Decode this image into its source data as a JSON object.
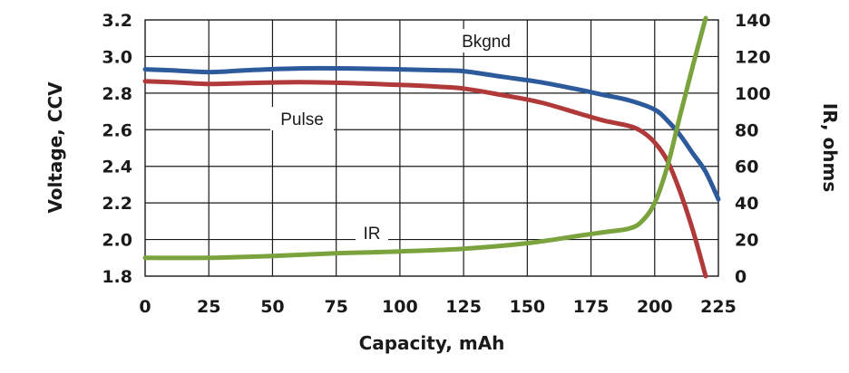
{
  "chart_data": {
    "type": "line",
    "xlabel": "Capacity, mAh",
    "ylabel": "Voltage, CCV",
    "y2label": "IR, ohms",
    "xlim": [
      0,
      225
    ],
    "ylim": [
      1.8,
      3.2
    ],
    "y2lim": [
      0,
      140
    ],
    "x_ticks": [
      "0",
      "25",
      "50",
      "75",
      "100",
      "125",
      "150",
      "175",
      "200",
      "225"
    ],
    "y_ticks": [
      "1.8",
      "2.0",
      "2.2",
      "2.4",
      "2.6",
      "2.8",
      "3.0",
      "3.2"
    ],
    "y2_ticks": [
      "0",
      "20",
      "40",
      "60",
      "80",
      "100",
      "120",
      "140"
    ],
    "grid": true,
    "series": [
      {
        "name": "Bkgnd",
        "axis": "left",
        "color": "#2d5a9a",
        "x": [
          0,
          10,
          25,
          40,
          60,
          80,
          100,
          115,
          125,
          140,
          155,
          170,
          180,
          190,
          200,
          205,
          210,
          215,
          220,
          225
        ],
        "y": [
          2.93,
          2.925,
          2.915,
          2.925,
          2.935,
          2.935,
          2.93,
          2.925,
          2.92,
          2.89,
          2.86,
          2.82,
          2.79,
          2.76,
          2.71,
          2.65,
          2.57,
          2.47,
          2.37,
          2.22
        ]
      },
      {
        "name": "Pulse",
        "axis": "left",
        "color": "#b03a3a",
        "x": [
          0,
          10,
          25,
          40,
          60,
          80,
          100,
          115,
          125,
          140,
          155,
          170,
          180,
          190,
          195,
          200,
          205,
          210,
          215,
          220
        ],
        "y": [
          2.865,
          2.86,
          2.85,
          2.855,
          2.86,
          2.855,
          2.845,
          2.835,
          2.825,
          2.79,
          2.75,
          2.69,
          2.65,
          2.62,
          2.59,
          2.53,
          2.43,
          2.26,
          2.05,
          1.8
        ]
      },
      {
        "name": "IR",
        "axis": "right",
        "color": "#7aa33d",
        "x": [
          0,
          25,
          50,
          75,
          100,
          125,
          150,
          170,
          180,
          190,
          195,
          200,
          205,
          210,
          215,
          220
        ],
        "y": [
          10,
          10,
          11,
          12.5,
          13.5,
          15,
          18,
          22,
          24,
          26,
          30,
          40,
          60,
          88,
          115,
          142
        ]
      }
    ],
    "annotations": [
      "Bkgnd",
      "Pulse",
      "IR"
    ]
  }
}
